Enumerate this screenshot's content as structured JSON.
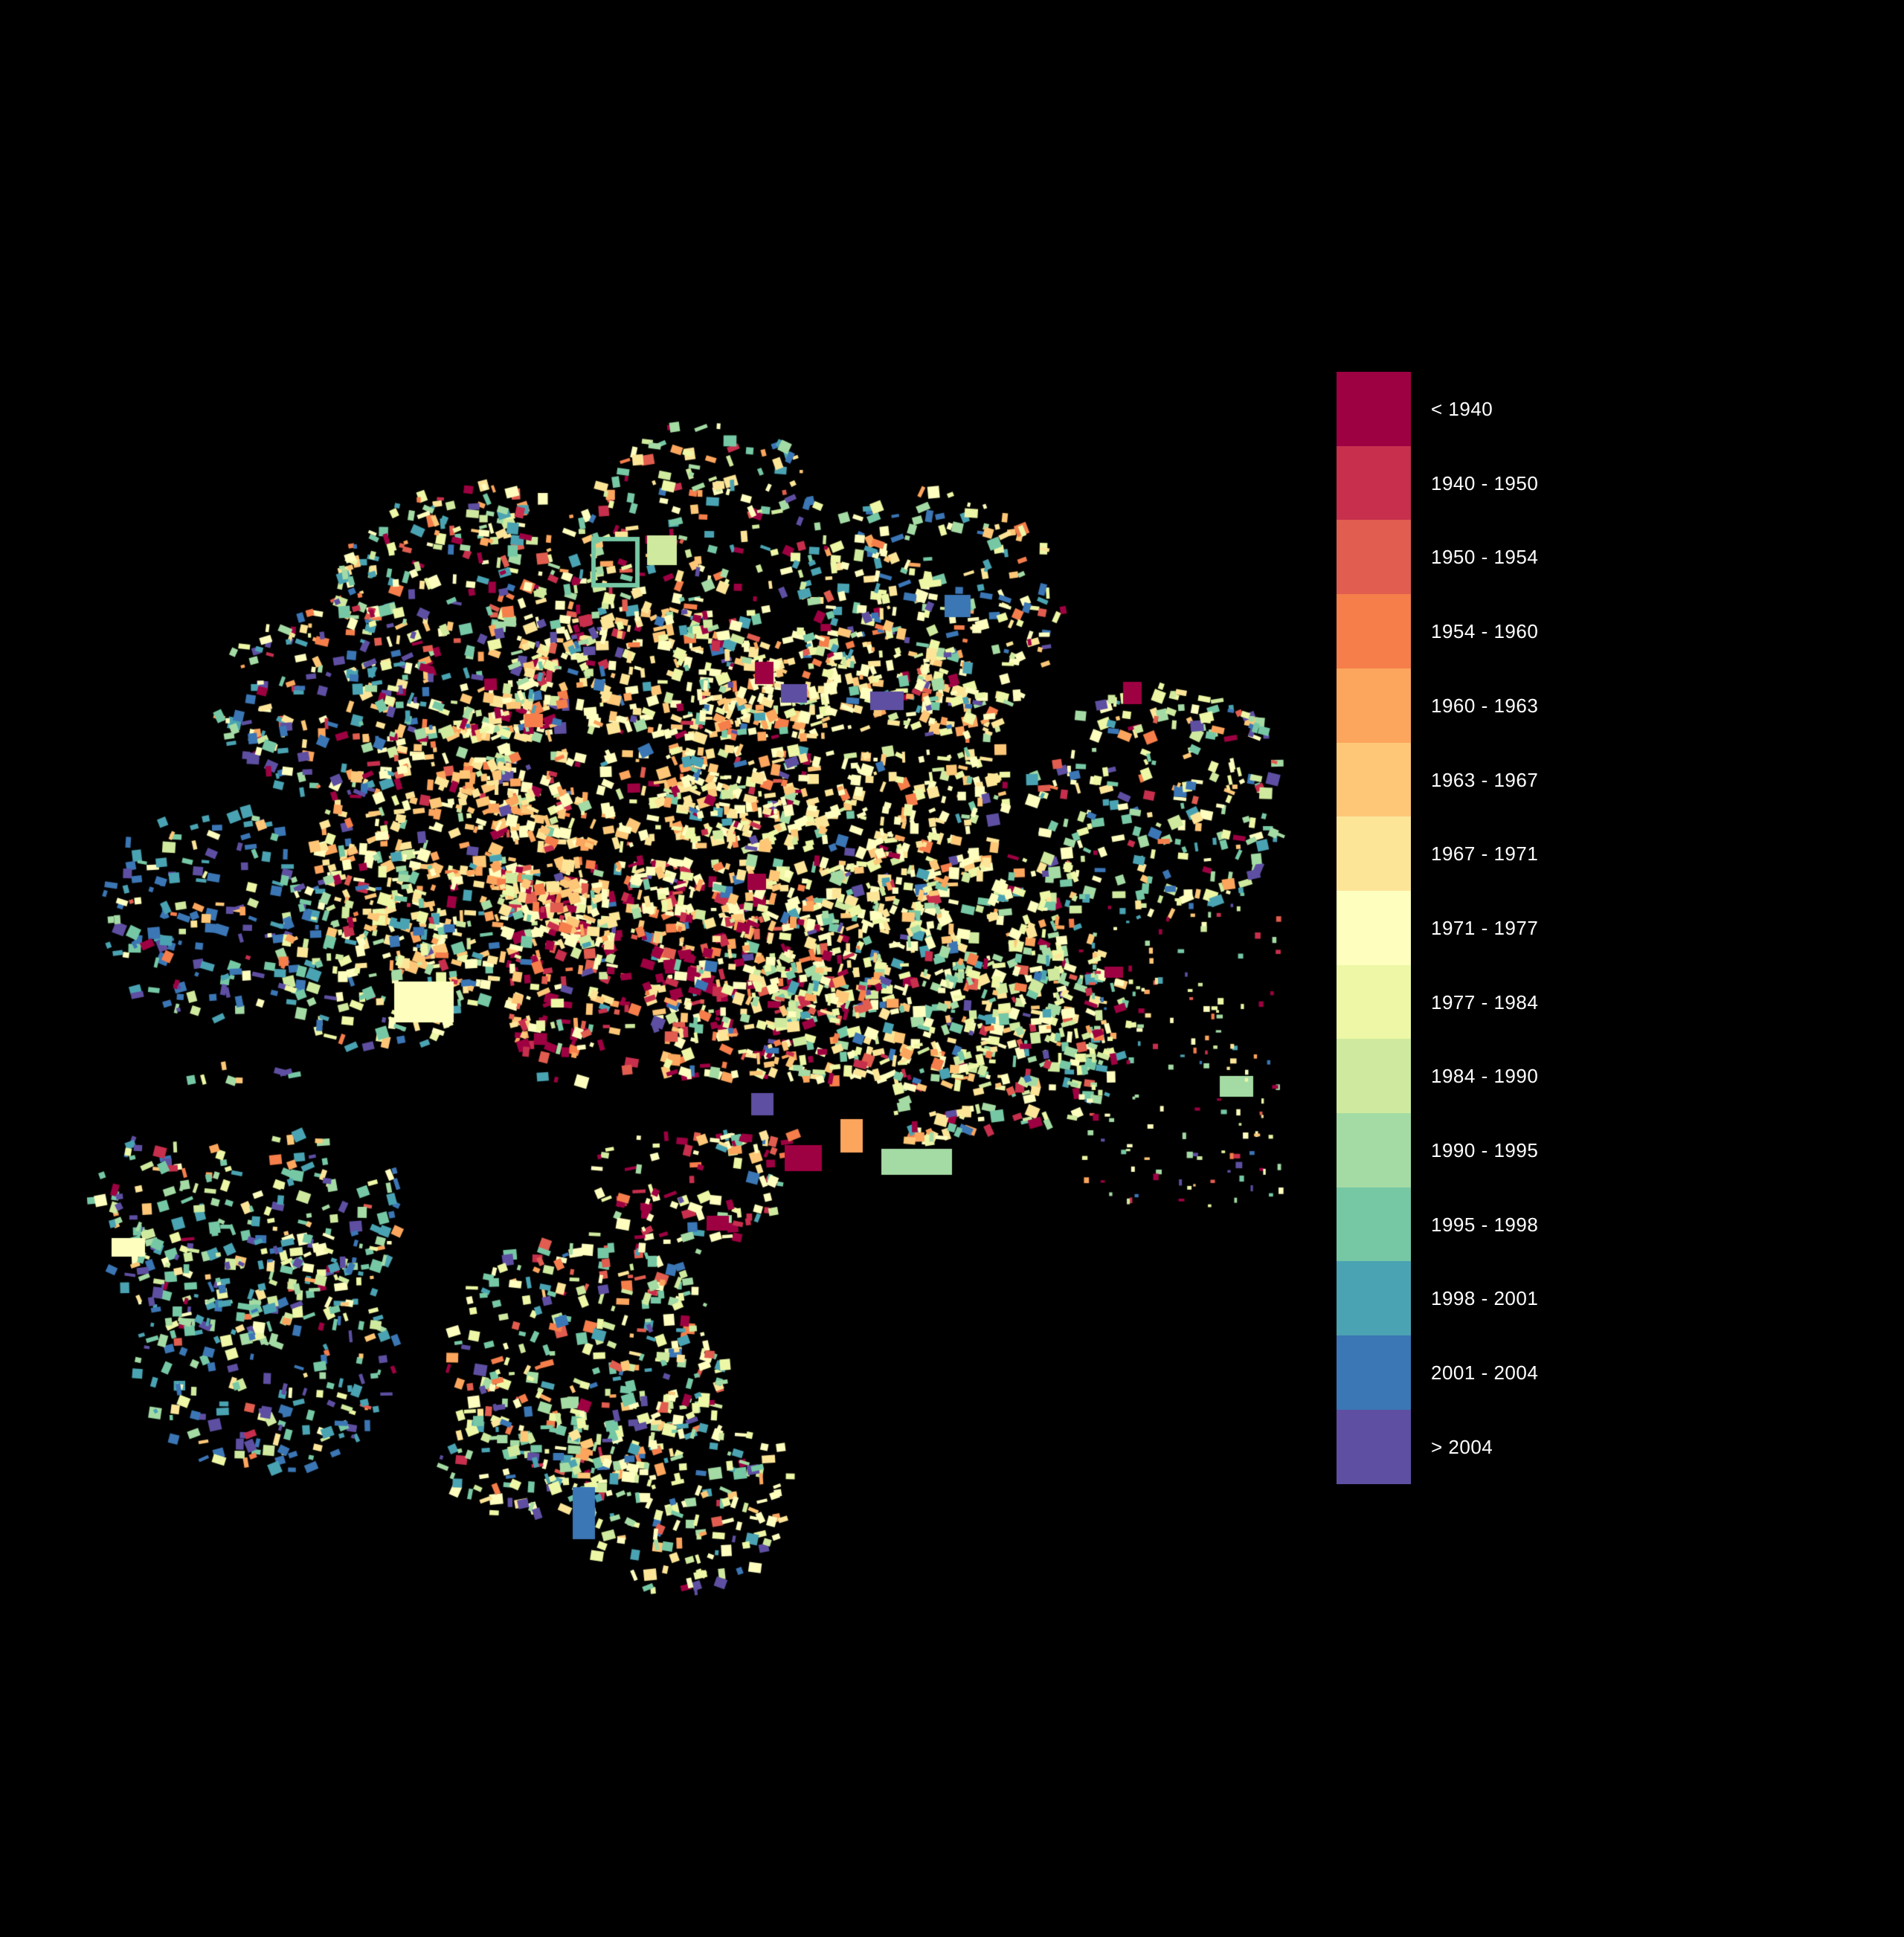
{
  "map": {
    "background": "#000000",
    "legend": {
      "items": [
        {
          "label": "< 1940",
          "color": "#9e0142"
        },
        {
          "label": "1940 - 1950",
          "color": "#c72f4d"
        },
        {
          "label": "1950 - 1954",
          "color": "#e15d4f"
        },
        {
          "label": "1954 - 1960",
          "color": "#f57e4b"
        },
        {
          "label": "1960 - 1963",
          "color": "#fca55d"
        },
        {
          "label": "1963 - 1967",
          "color": "#fdc777"
        },
        {
          "label": "1967 - 1971",
          "color": "#fde598"
        },
        {
          "label": "1971 - 1977",
          "color": "#fefebf"
        },
        {
          "label": "1977 - 1984",
          "color": "#edf7a5"
        },
        {
          "label": "1984 - 1990",
          "color": "#cfea9e"
        },
        {
          "label": "1990 - 1995",
          "color": "#a4dba4"
        },
        {
          "label": "1995 - 1998",
          "color": "#76c8a5"
        },
        {
          "label": "1998 - 2001",
          "color": "#4aa3b2"
        },
        {
          "label": "2001 - 2004",
          "color": "#3b76b5"
        },
        {
          "label": "> 2004",
          "color": "#5e4fa2"
        }
      ]
    }
  }
}
